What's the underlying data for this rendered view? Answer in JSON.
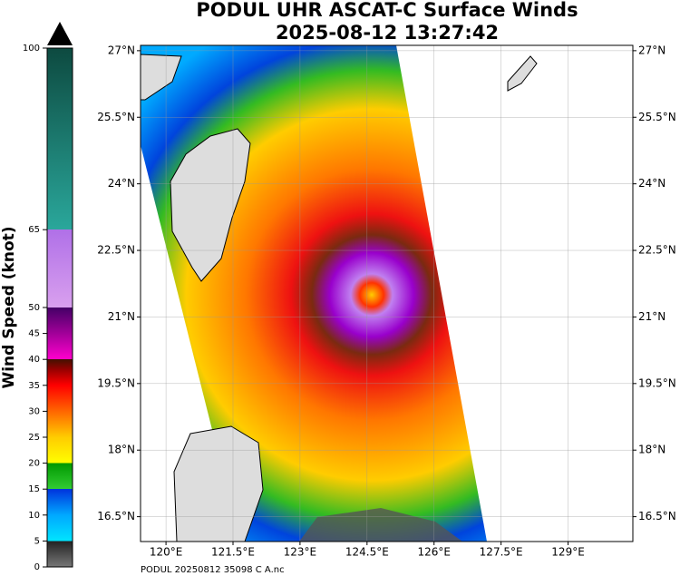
{
  "title": "PODUL UHR ASCAT-C Surface Winds",
  "subtitle": "2025-08-12 13:27:42",
  "colorbar": {
    "label": "Wind Speed (knot)",
    "lim": [
      0,
      100
    ],
    "ticks": [
      0,
      5,
      10,
      15,
      20,
      25,
      30,
      35,
      40,
      45,
      50,
      65,
      100
    ]
  },
  "map": {
    "xlim": [
      119.43,
      130.45
    ],
    "ylim": [
      15.94,
      27.12
    ],
    "xticks": [
      {
        "value": 120,
        "label": "120°E"
      },
      {
        "value": 121.5,
        "label": "121.5°E"
      },
      {
        "value": 123,
        "label": "123°E"
      },
      {
        "value": 124.5,
        "label": "124.5°E"
      },
      {
        "value": 126,
        "label": "126°E"
      },
      {
        "value": 127.5,
        "label": "127.5°E"
      },
      {
        "value": 129,
        "label": "129°E"
      }
    ],
    "yticks": [
      {
        "value": 16.5,
        "label": "16.5°N"
      },
      {
        "value": 18,
        "label": "18°N"
      },
      {
        "value": 19.5,
        "label": "19.5°N"
      },
      {
        "value": 21,
        "label": "21°N"
      },
      {
        "value": 22.5,
        "label": "22.5°N"
      },
      {
        "value": 24,
        "label": "24°N"
      },
      {
        "value": 25.5,
        "label": "25.5°N"
      },
      {
        "value": 27,
        "label": "27°N"
      }
    ]
  },
  "footer": "PODUL 20250812 35098 C A.nc"
}
